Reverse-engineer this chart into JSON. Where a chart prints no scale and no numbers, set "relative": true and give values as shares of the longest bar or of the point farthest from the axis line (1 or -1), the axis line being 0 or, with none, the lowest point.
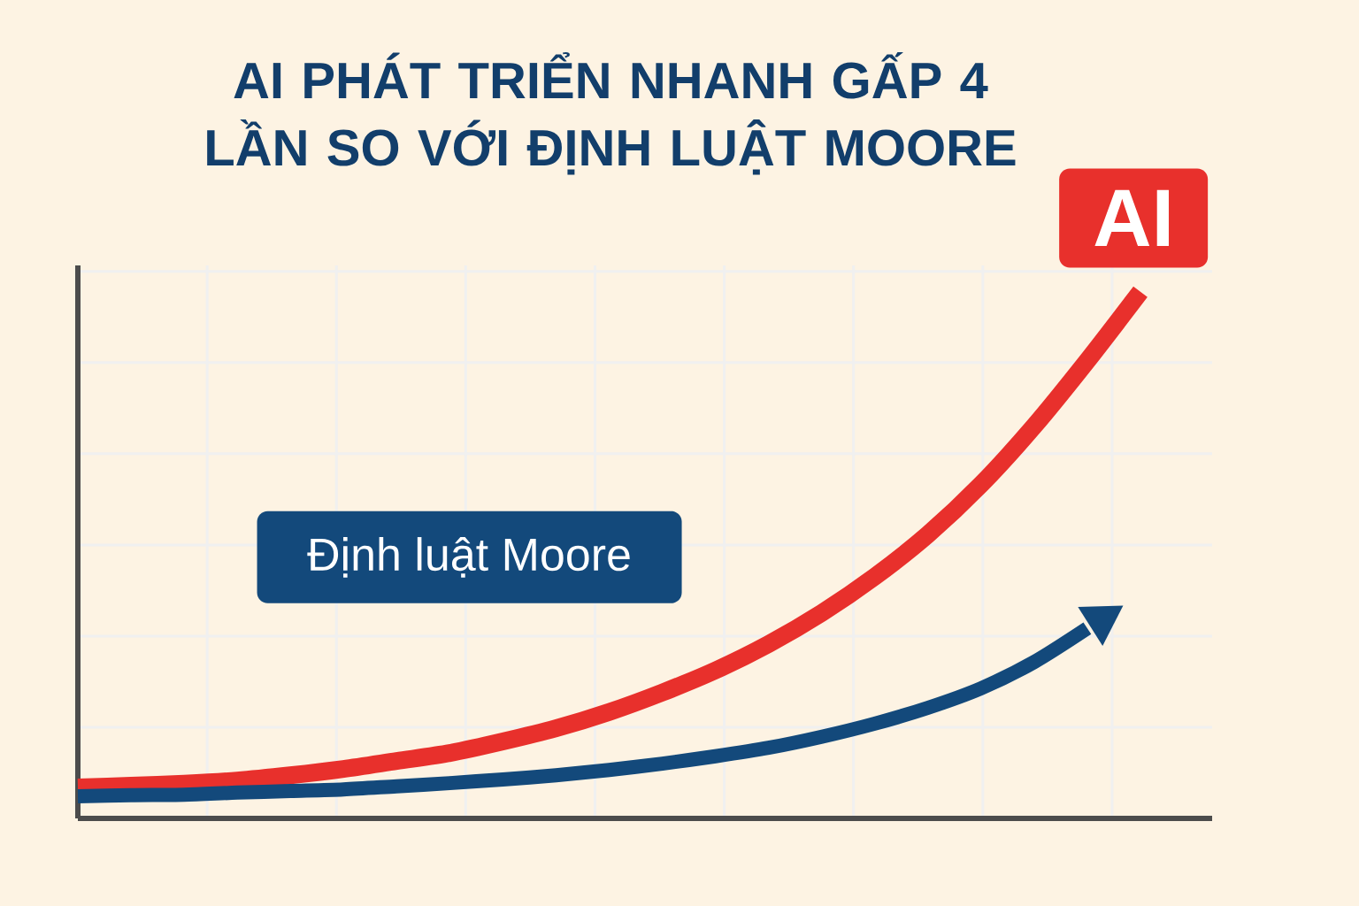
{
  "chart_data": {
    "type": "line",
    "title": "AI PHÁT TRIỂN NHANH GẤP 4 LẦN SO VỚI ĐỊNH LUẬT MOORE",
    "relative": true,
    "grid": true,
    "legend": false,
    "marker": "none",
    "line_style": "solid",
    "categories": [
      null,
      null,
      null,
      null,
      null,
      null,
      null,
      null,
      null,
      null,
      null,
      null,
      null,
      null,
      null,
      null,
      null,
      null,
      null,
      null,
      null
    ],
    "series": [
      {
        "name": "AI",
        "color": "#e8302c",
        "values": [
          0.059,
          0.062,
          0.066,
          0.072,
          0.082,
          0.094,
          0.109,
          0.124,
          0.146,
          0.171,
          0.202,
          0.239,
          0.281,
          0.331,
          0.39,
          0.459,
          0.539,
          0.634,
          0.745,
          0.869,
          1
        ]
      },
      {
        "name": "Định luật Moore",
        "color": "#13497b",
        "values": [
          0.042,
          0.044,
          0.045,
          0.049,
          0.052,
          0.055,
          0.061,
          0.067,
          0.074,
          0.082,
          0.092,
          0.104,
          0.118,
          0.134,
          0.155,
          0.18,
          0.21,
          0.247,
          0.297,
          0.361,
          null
        ]
      }
    ]
  }
}
